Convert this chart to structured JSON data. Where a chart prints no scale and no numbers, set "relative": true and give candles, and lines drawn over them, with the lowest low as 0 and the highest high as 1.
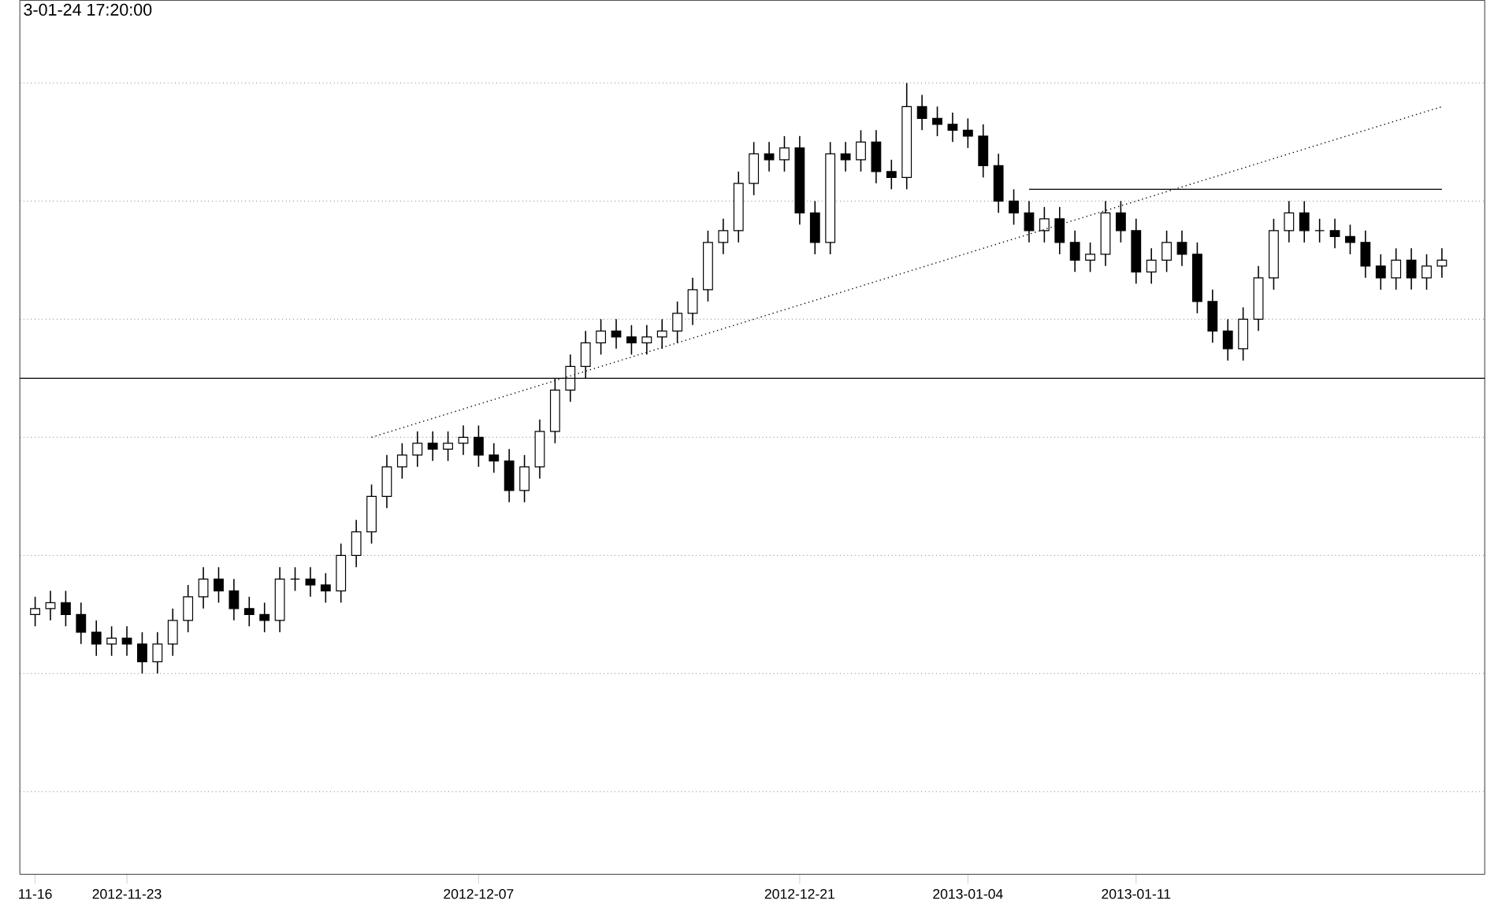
{
  "chart_data": {
    "type": "candlestick",
    "relative": true,
    "color": "#000000",
    "grid": "y",
    "annotations": [
      "3-01-24 17:20:00"
    ],
    "categories": [
      "11-16",
      null,
      null,
      null,
      null,
      null,
      "2012-11-23",
      null,
      null,
      null,
      null,
      null,
      null,
      null,
      null,
      null,
      null,
      null,
      null,
      null,
      null,
      null,
      null,
      null,
      null,
      null,
      null,
      null,
      null,
      "2012-12-07",
      null,
      null,
      null,
      null,
      null,
      null,
      null,
      null,
      null,
      null,
      null,
      null,
      null,
      null,
      null,
      null,
      null,
      null,
      null,
      null,
      "2012-12-21",
      null,
      null,
      null,
      null,
      null,
      null,
      null,
      null,
      null,
      null,
      "2013-01-04",
      null,
      null,
      null,
      null,
      null,
      null,
      null,
      null,
      null,
      null,
      "2013-01-11",
      null,
      null,
      null,
      null,
      null,
      null,
      null,
      null,
      null,
      null,
      null,
      null,
      null,
      null,
      null,
      null,
      null,
      null,
      null,
      null
    ],
    "ohlc": [
      [
        0.1,
        0.13,
        0.08,
        0.11
      ],
      [
        0.11,
        0.14,
        0.09,
        0.12
      ],
      [
        0.12,
        0.14,
        0.08,
        0.1
      ],
      [
        0.1,
        0.12,
        0.05,
        0.07
      ],
      [
        0.07,
        0.09,
        0.03,
        0.05
      ],
      [
        0.05,
        0.08,
        0.03,
        0.06
      ],
      [
        0.06,
        0.08,
        0.03,
        0.05
      ],
      [
        0.05,
        0.07,
        0.0,
        0.02
      ],
      [
        0.02,
        0.07,
        0.0,
        0.05
      ],
      [
        0.05,
        0.11,
        0.03,
        0.09
      ],
      [
        0.09,
        0.15,
        0.07,
        0.13
      ],
      [
        0.13,
        0.18,
        0.11,
        0.16
      ],
      [
        0.16,
        0.18,
        0.12,
        0.14
      ],
      [
        0.14,
        0.16,
        0.09,
        0.11
      ],
      [
        0.11,
        0.13,
        0.08,
        0.1
      ],
      [
        0.1,
        0.12,
        0.07,
        0.09
      ],
      [
        0.09,
        0.18,
        0.07,
        0.16
      ],
      [
        0.16,
        0.18,
        0.14,
        0.16
      ],
      [
        0.16,
        0.18,
        0.13,
        0.15
      ],
      [
        0.15,
        0.17,
        0.12,
        0.14
      ],
      [
        0.14,
        0.22,
        0.12,
        0.2
      ],
      [
        0.2,
        0.26,
        0.18,
        0.24
      ],
      [
        0.24,
        0.32,
        0.22,
        0.3
      ],
      [
        0.3,
        0.37,
        0.28,
        0.35
      ],
      [
        0.35,
        0.39,
        0.33,
        0.37
      ],
      [
        0.37,
        0.41,
        0.35,
        0.39
      ],
      [
        0.39,
        0.41,
        0.36,
        0.38
      ],
      [
        0.38,
        0.41,
        0.36,
        0.39
      ],
      [
        0.39,
        0.42,
        0.37,
        0.4
      ],
      [
        0.4,
        0.42,
        0.35,
        0.37
      ],
      [
        0.37,
        0.39,
        0.34,
        0.36
      ],
      [
        0.36,
        0.38,
        0.29,
        0.31
      ],
      [
        0.31,
        0.37,
        0.29,
        0.35
      ],
      [
        0.35,
        0.43,
        0.33,
        0.41
      ],
      [
        0.41,
        0.5,
        0.39,
        0.48
      ],
      [
        0.48,
        0.54,
        0.46,
        0.52
      ],
      [
        0.52,
        0.58,
        0.5,
        0.56
      ],
      [
        0.56,
        0.6,
        0.54,
        0.58
      ],
      [
        0.58,
        0.6,
        0.55,
        0.57
      ],
      [
        0.57,
        0.59,
        0.54,
        0.56
      ],
      [
        0.56,
        0.59,
        0.54,
        0.57
      ],
      [
        0.57,
        0.6,
        0.55,
        0.58
      ],
      [
        0.58,
        0.63,
        0.56,
        0.61
      ],
      [
        0.61,
        0.67,
        0.59,
        0.65
      ],
      [
        0.65,
        0.75,
        0.63,
        0.73
      ],
      [
        0.73,
        0.77,
        0.71,
        0.75
      ],
      [
        0.75,
        0.85,
        0.73,
        0.83
      ],
      [
        0.83,
        0.9,
        0.81,
        0.88
      ],
      [
        0.88,
        0.9,
        0.85,
        0.87
      ],
      [
        0.87,
        0.91,
        0.85,
        0.89
      ],
      [
        0.89,
        0.91,
        0.76,
        0.78
      ],
      [
        0.78,
        0.8,
        0.71,
        0.73
      ],
      [
        0.73,
        0.9,
        0.71,
        0.88
      ],
      [
        0.88,
        0.9,
        0.85,
        0.87
      ],
      [
        0.87,
        0.92,
        0.85,
        0.9
      ],
      [
        0.9,
        0.92,
        0.83,
        0.85
      ],
      [
        0.85,
        0.87,
        0.82,
        0.84
      ],
      [
        0.84,
        1.0,
        0.82,
        0.96
      ],
      [
        0.96,
        0.98,
        0.92,
        0.94
      ],
      [
        0.94,
        0.96,
        0.91,
        0.93
      ],
      [
        0.93,
        0.95,
        0.9,
        0.92
      ],
      [
        0.92,
        0.94,
        0.89,
        0.91
      ],
      [
        0.91,
        0.93,
        0.84,
        0.86
      ],
      [
        0.86,
        0.88,
        0.78,
        0.8
      ],
      [
        0.8,
        0.82,
        0.76,
        0.78
      ],
      [
        0.78,
        0.8,
        0.73,
        0.75
      ],
      [
        0.75,
        0.79,
        0.73,
        0.77
      ],
      [
        0.77,
        0.79,
        0.71,
        0.73
      ],
      [
        0.73,
        0.75,
        0.68,
        0.7
      ],
      [
        0.7,
        0.73,
        0.68,
        0.71
      ],
      [
        0.71,
        0.8,
        0.69,
        0.78
      ],
      [
        0.78,
        0.8,
        0.73,
        0.75
      ],
      [
        0.75,
        0.77,
        0.66,
        0.68
      ],
      [
        0.68,
        0.72,
        0.66,
        0.7
      ],
      [
        0.7,
        0.75,
        0.68,
        0.73
      ],
      [
        0.73,
        0.75,
        0.69,
        0.71
      ],
      [
        0.71,
        0.73,
        0.61,
        0.63
      ],
      [
        0.63,
        0.65,
        0.56,
        0.58
      ],
      [
        0.58,
        0.6,
        0.53,
        0.55
      ],
      [
        0.55,
        0.62,
        0.53,
        0.6
      ],
      [
        0.6,
        0.69,
        0.58,
        0.67
      ],
      [
        0.67,
        0.77,
        0.65,
        0.75
      ],
      [
        0.75,
        0.8,
        0.73,
        0.78
      ],
      [
        0.78,
        0.8,
        0.73,
        0.75
      ],
      [
        0.75,
        0.77,
        0.73,
        0.75
      ],
      [
        0.75,
        0.77,
        0.72,
        0.74
      ],
      [
        0.74,
        0.76,
        0.71,
        0.73
      ],
      [
        0.73,
        0.75,
        0.67,
        0.69
      ],
      [
        0.69,
        0.71,
        0.65,
        0.67
      ],
      [
        0.67,
        0.72,
        0.65,
        0.7
      ],
      [
        0.7,
        0.72,
        0.65,
        0.67
      ],
      [
        0.67,
        0.71,
        0.65,
        0.69
      ],
      [
        0.69,
        0.72,
        0.67,
        0.7
      ]
    ],
    "ref_lines": [
      {
        "axis": "y",
        "value": 0.5,
        "color": "#000000"
      }
    ],
    "series": [
      {
        "type": "line",
        "values": [
          null,
          null,
          null,
          null,
          null,
          null,
          null,
          null,
          null,
          null,
          null,
          null,
          null,
          null,
          null,
          null,
          null,
          null,
          null,
          null,
          null,
          null,
          0.4,
          null,
          null,
          null,
          null,
          null,
          null,
          null,
          null,
          null,
          null,
          null,
          null,
          null,
          null,
          null,
          null,
          null,
          null,
          null,
          null,
          null,
          null,
          null,
          null,
          null,
          null,
          null,
          null,
          null,
          null,
          null,
          null,
          null,
          null,
          null,
          null,
          null,
          null,
          null,
          null,
          null,
          null,
          null,
          null,
          null,
          null,
          null,
          null,
          null,
          null,
          null,
          null,
          null,
          null,
          null,
          null,
          null,
          null,
          null,
          null,
          null,
          null,
          null,
          null,
          null,
          null,
          null,
          null,
          null,
          0.96
        ],
        "color": "#000000",
        "line_style": "dotted"
      },
      {
        "type": "line",
        "values": [
          null,
          null,
          null,
          null,
          null,
          null,
          null,
          null,
          null,
          null,
          null,
          null,
          null,
          null,
          null,
          null,
          null,
          null,
          null,
          null,
          null,
          null,
          null,
          null,
          null,
          null,
          null,
          null,
          null,
          null,
          null,
          null,
          null,
          null,
          null,
          null,
          null,
          null,
          null,
          null,
          null,
          null,
          null,
          null,
          null,
          null,
          null,
          null,
          null,
          null,
          null,
          null,
          null,
          null,
          null,
          null,
          null,
          null,
          null,
          null,
          null,
          null,
          null,
          null,
          null,
          0.82,
          null,
          null,
          null,
          null,
          null,
          null,
          null,
          null,
          null,
          null,
          null,
          null,
          null,
          null,
          null,
          null,
          null,
          null,
          null,
          null,
          null,
          null,
          null,
          null,
          null,
          null,
          0.82
        ],
        "color": "#000000",
        "line_style": "solid"
      }
    ]
  }
}
